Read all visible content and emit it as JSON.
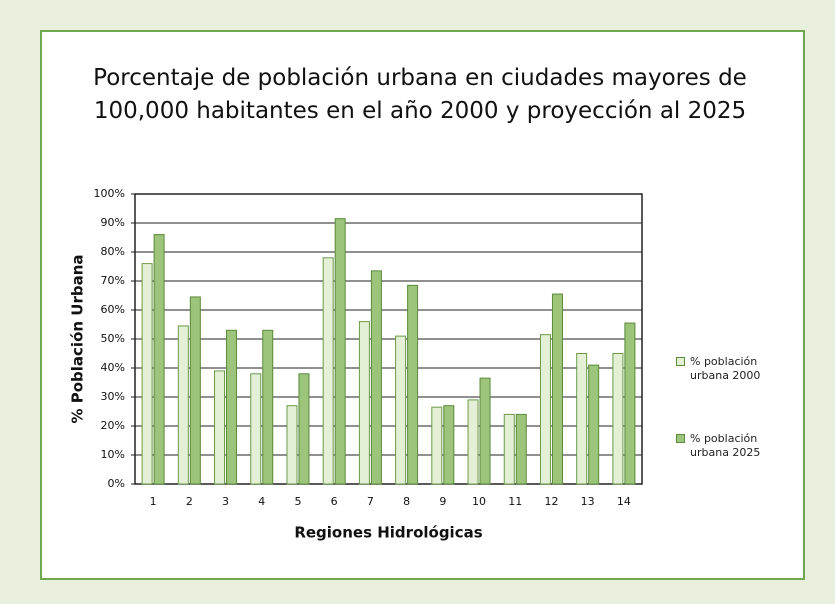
{
  "chart_data": {
    "type": "bar",
    "title": "Porcentaje de población urbana en ciudades mayores de 100,000 habitantes en el año 2000 y proyección al 2025",
    "xlabel": "Regiones Hidrológicas",
    "ylabel": "% Población Urbana",
    "categories": [
      "1",
      "2",
      "3",
      "4",
      "5",
      "6",
      "7",
      "8",
      "9",
      "10",
      "11",
      "12",
      "13",
      "14"
    ],
    "series": [
      {
        "name": "% población urbana 2000",
        "color": "#e4f0d6",
        "values": [
          76,
          54.5,
          39,
          38,
          27,
          78,
          56,
          51,
          26.5,
          29,
          24,
          51.5,
          45,
          45
        ]
      },
      {
        "name": "% población urbana 2025",
        "color": "#9cc47a",
        "values": [
          86,
          64.5,
          53,
          53,
          38,
          91.5,
          73.5,
          68.5,
          27,
          36.5,
          24,
          65.5,
          41,
          55.5
        ]
      }
    ],
    "ylim": [
      0,
      100
    ],
    "yticks": [
      {
        "value": 0,
        "label": "0%"
      },
      {
        "value": 10,
        "label": "10%"
      },
      {
        "value": 20,
        "label": "20%"
      },
      {
        "value": 30,
        "label": "30%"
      },
      {
        "value": 40,
        "label": "40%"
      },
      {
        "value": 50,
        "label": "50%"
      },
      {
        "value": 60,
        "label": "60%"
      },
      {
        "value": 70,
        "label": "70%"
      },
      {
        "value": 80,
        "label": "80%"
      },
      {
        "value": 90,
        "label": "90%"
      },
      {
        "value": 100,
        "label": "100%"
      }
    ],
    "grid": true
  }
}
